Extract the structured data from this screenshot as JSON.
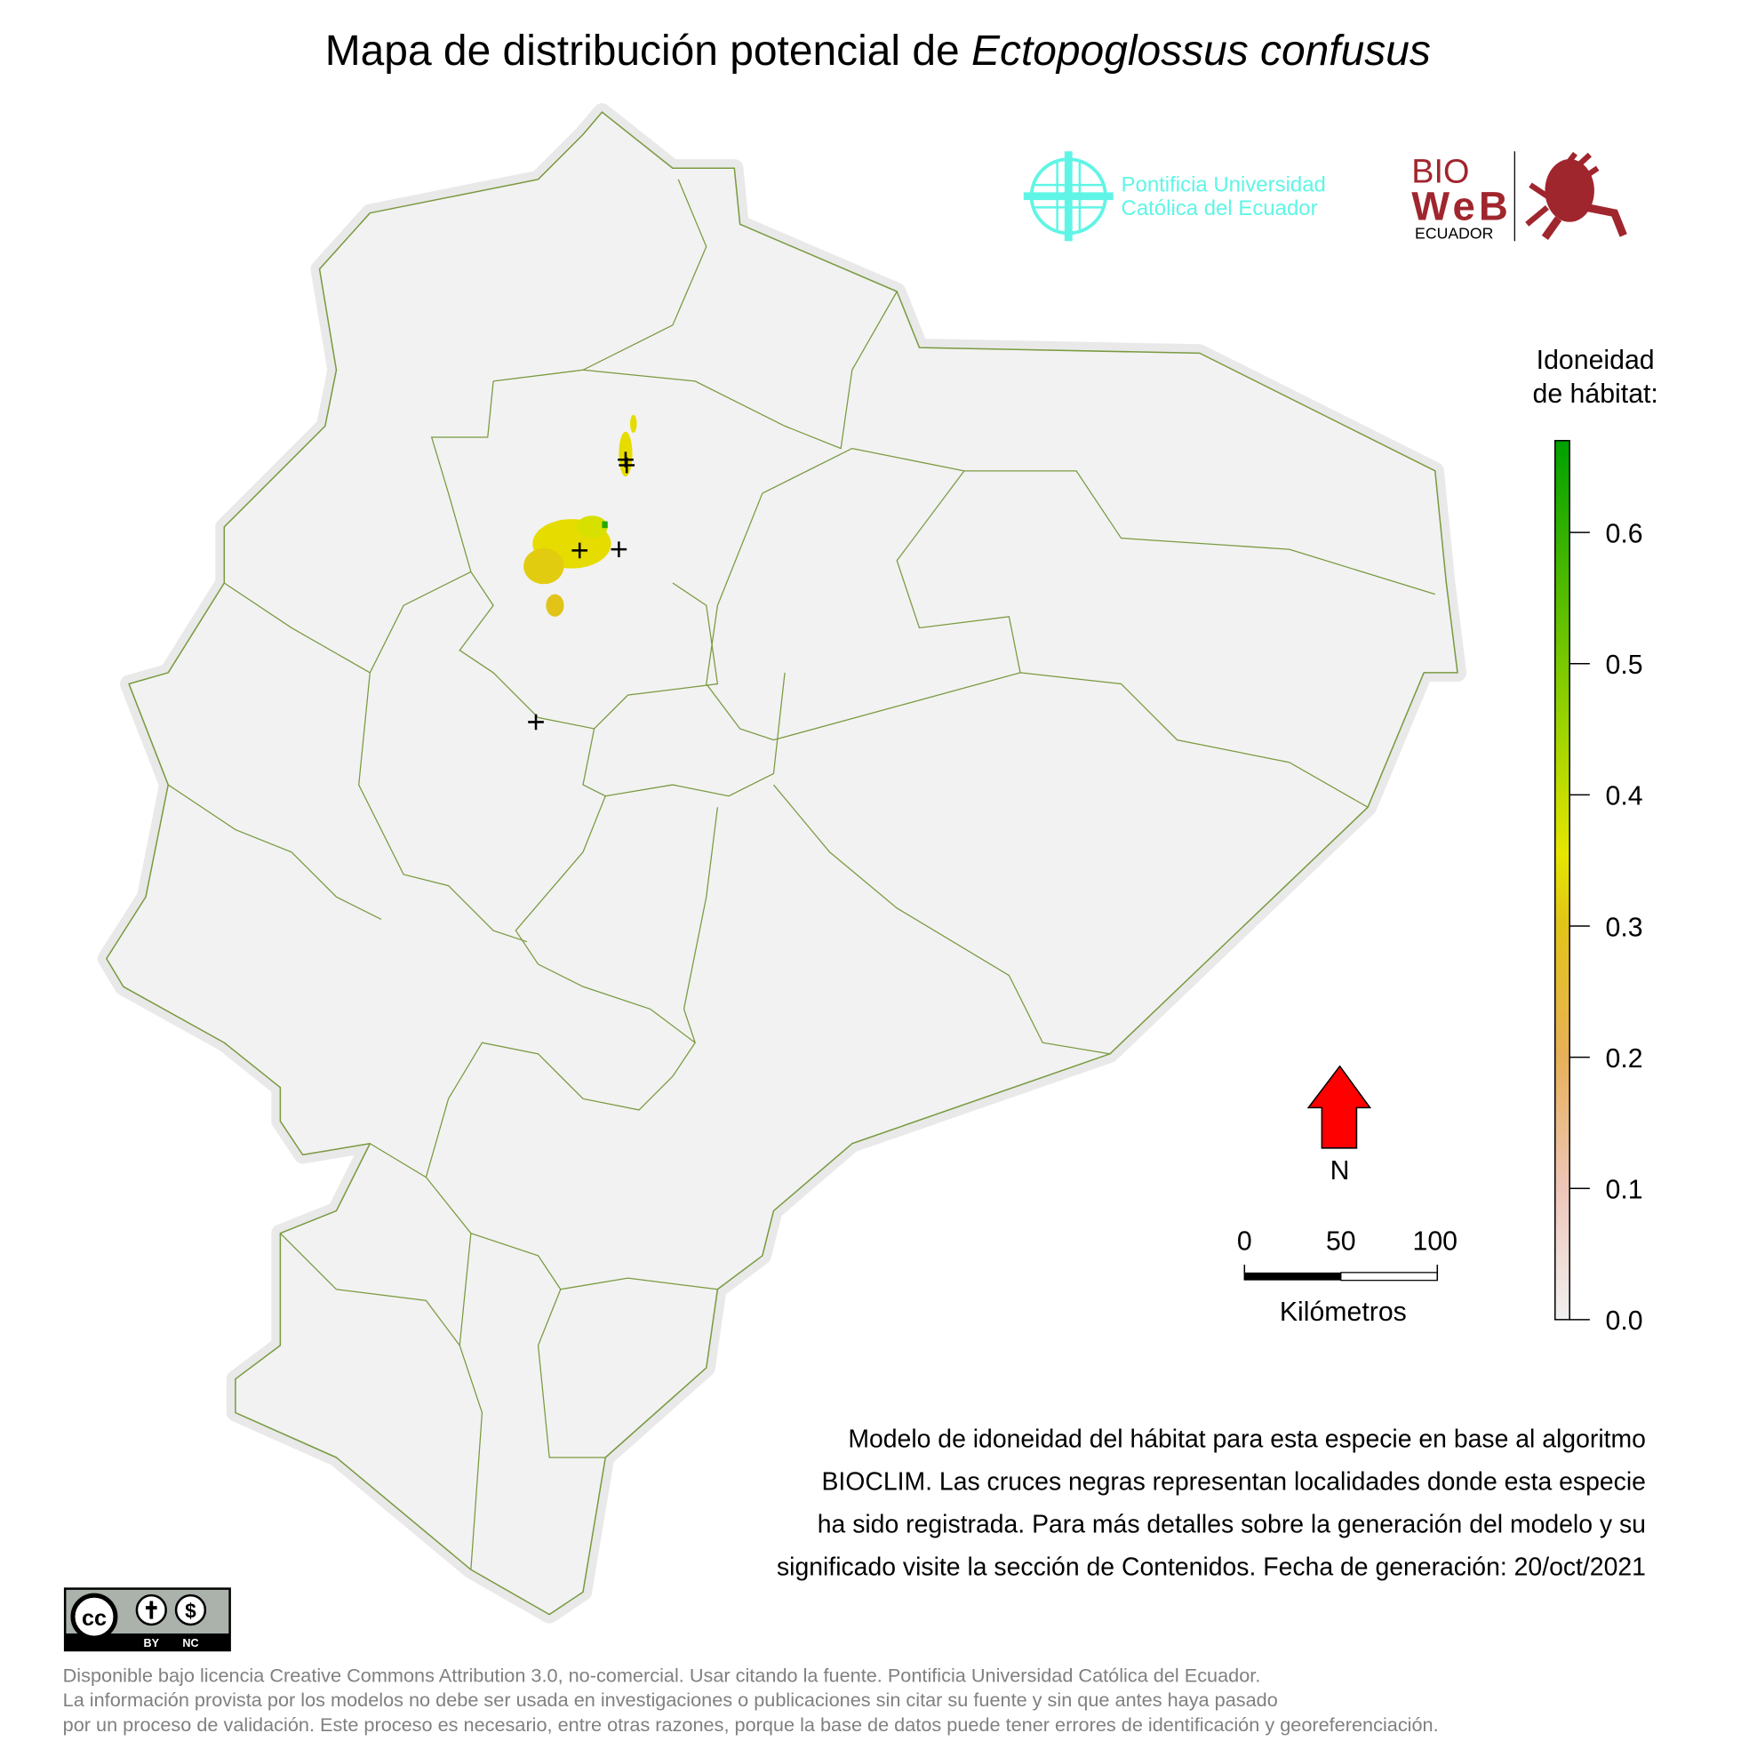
{
  "title": {
    "prefix": "Mapa de distribución potencial de ",
    "species": "Ectopoglossus confusus"
  },
  "logos": {
    "puce_line1": "Pontificia Universidad",
    "puce_line2": "Católica del Ecuador",
    "bioweb_line1": "BIO",
    "bioweb_line2": "WeB",
    "bioweb_line3": "ECUADOR",
    "puce_color": "#5ff5e6",
    "bioweb_color": "#a0262e"
  },
  "legend": {
    "title_line1": "Idoneidad",
    "title_line2": "de hábitat:",
    "ticks": [
      "0.0",
      "0.1",
      "0.2",
      "0.3",
      "0.4",
      "0.5",
      "0.6"
    ],
    "range": [
      0,
      0.67
    ],
    "colors": [
      "#f0f0f0",
      "#eec6b8",
      "#e8b058",
      "#e2c418",
      "#e6e600",
      "#8fd000",
      "#00a000"
    ]
  },
  "north_arrow": {
    "label": "N",
    "color": "#ff0000"
  },
  "scale_bar": {
    "labels": [
      "0",
      "50",
      "100"
    ],
    "unit": "Kilómetros"
  },
  "description": [
    "Modelo de idoneidad del hábitat para esta especie en base al algoritmo",
    "BIOCLIM. Las cruces negras representan localidades donde esta especie",
    "ha sido registrada. Para más detalles sobre la generación del modelo y su",
    "significado visite la sección de Contenidos. Fecha de generación: 20/oct/2021"
  ],
  "license": {
    "badge_cc": "cc",
    "badge_by": "BY",
    "badge_nc": "NC",
    "footer": [
      "Disponible bajo licencia Creative Commons Attribution 3.0, no-comercial. Usar citando la fuente. Pontificia Universidad Católica del Ecuador.",
      "La información provista por los modelos no debe ser usada en investigaciones o publicaciones sin citar su fuente y sin que antes haya pasado",
      "por un proceso de validación. Este proceso es necesario, entre otras razones, porque la base de datos puede tener errores de identificación y georeferenciación."
    ]
  },
  "map": {
    "land_color": "#f2f2f2",
    "border_color": "#7a9a40",
    "locality_marker": "black-cross"
  }
}
